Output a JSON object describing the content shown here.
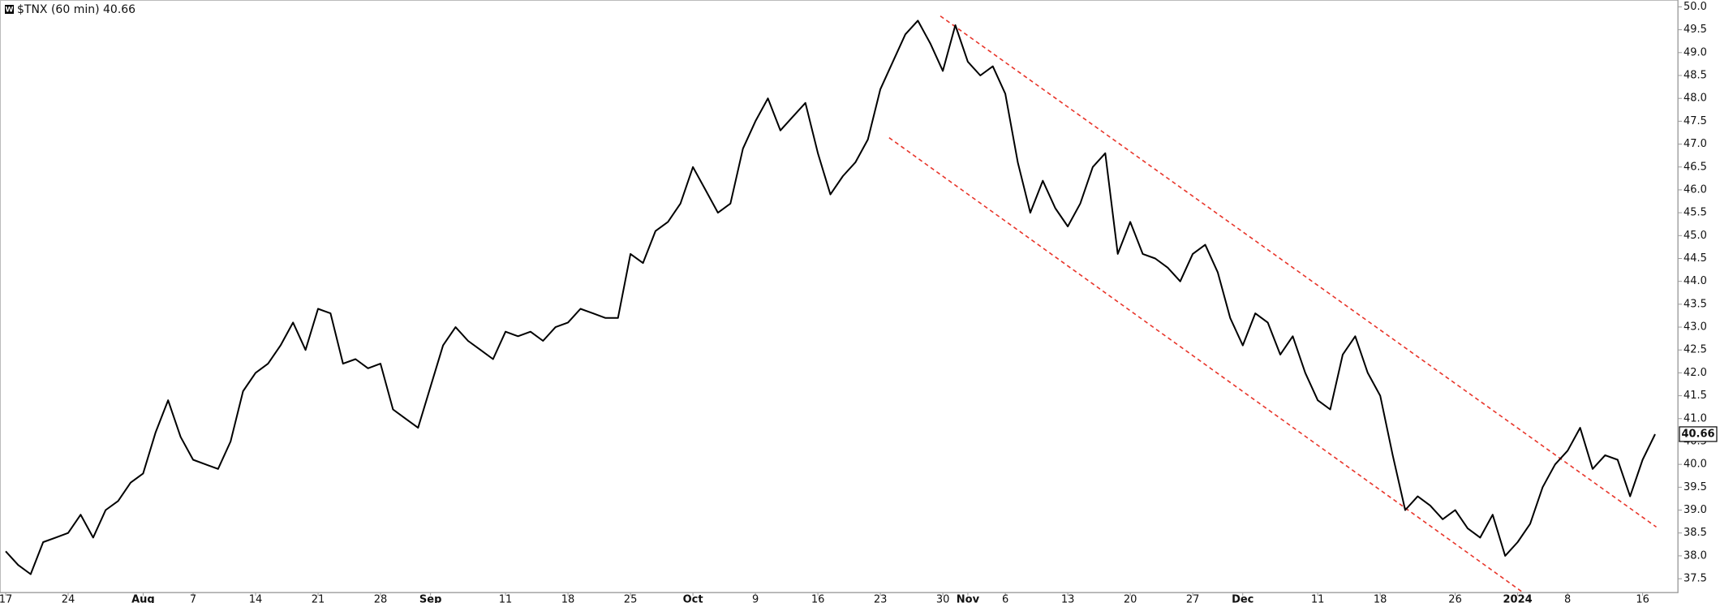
{
  "chart_data": {
    "type": "line",
    "title": "$TNX (60 min) 40.66",
    "categories": [
      "17",
      null,
      null,
      null,
      null,
      "24",
      null,
      null,
      null,
      null,
      null,
      "Aug",
      null,
      null,
      null,
      "7",
      null,
      null,
      null,
      null,
      "14",
      null,
      null,
      null,
      null,
      "21",
      null,
      null,
      null,
      null,
      "28",
      null,
      null,
      null,
      "Sep",
      null,
      null,
      null,
      null,
      null,
      "11",
      null,
      null,
      null,
      null,
      "18",
      null,
      null,
      null,
      null,
      "25",
      null,
      null,
      null,
      null,
      "Oct",
      null,
      null,
      null,
      null,
      "9",
      null,
      null,
      null,
      null,
      "16",
      null,
      null,
      null,
      null,
      "23",
      null,
      null,
      null,
      null,
      "30",
      null,
      "Nov",
      null,
      null,
      "6",
      null,
      null,
      null,
      null,
      "13",
      null,
      null,
      null,
      null,
      "20",
      null,
      null,
      null,
      null,
      "27",
      null,
      null,
      null,
      "Dec",
      null,
      null,
      null,
      null,
      null,
      "11",
      null,
      null,
      null,
      null,
      "18",
      null,
      null,
      null,
      null,
      null,
      "26",
      null,
      null,
      null,
      null,
      "2024",
      null,
      null,
      null,
      "8",
      null,
      null,
      null,
      null,
      null,
      "16",
      null
    ],
    "series": [
      {
        "color": "#000000",
        "values": [
          38.1,
          37.8,
          37.6,
          38.3,
          38.4,
          38.5,
          38.9,
          38.4,
          39.0,
          39.2,
          39.6,
          39.8,
          40.7,
          41.4,
          40.6,
          40.1,
          40.0,
          39.9,
          40.5,
          41.6,
          42.0,
          42.2,
          42.6,
          43.1,
          42.5,
          43.4,
          43.3,
          42.2,
          42.3,
          42.1,
          42.2,
          41.2,
          41.0,
          40.8,
          41.7,
          42.6,
          43.0,
          42.7,
          42.5,
          42.3,
          42.9,
          42.8,
          42.9,
          42.7,
          43.0,
          43.1,
          43.4,
          43.3,
          43.2,
          43.2,
          44.6,
          44.4,
          45.1,
          45.3,
          45.7,
          46.5,
          46.0,
          45.5,
          45.7,
          46.9,
          47.5,
          48.0,
          47.3,
          47.6,
          47.9,
          46.8,
          45.9,
          46.3,
          46.6,
          47.1,
          48.2,
          48.8,
          49.4,
          49.7,
          49.2,
          48.6,
          49.6,
          48.8,
          48.5,
          48.7,
          48.1,
          46.6,
          45.5,
          46.2,
          45.6,
          45.2,
          45.7,
          46.5,
          46.8,
          44.6,
          45.3,
          44.6,
          44.5,
          44.3,
          44.0,
          44.6,
          44.8,
          44.2,
          43.2,
          42.6,
          43.3,
          43.1,
          42.4,
          42.8,
          42.0,
          41.4,
          41.2,
          42.4,
          42.8,
          42.0,
          41.5,
          40.2,
          39.0,
          39.3,
          39.1,
          38.8,
          39.0,
          38.6,
          38.4,
          38.9,
          38.0,
          38.3,
          38.7,
          39.5,
          40.0,
          40.3,
          40.8,
          39.9,
          40.2,
          40.1,
          39.3,
          40.1,
          40.66
        ]
      }
    ],
    "trendlines": [
      {
        "color": "#e8352a",
        "start": [
          74.8,
          49.8
        ],
        "end": [
          132.1,
          38.63
        ]
      },
      {
        "color": "#e8352a",
        "start": [
          70.7,
          47.14
        ],
        "end": [
          122.7,
          36.95
        ]
      }
    ],
    "ylim": [
      37.2,
      50.15
    ],
    "yticks": [
      37.5,
      {
        "value": 38,
        "label": "38.0"
      },
      38.5,
      {
        "value": 39,
        "label": "39.0"
      },
      39.5,
      {
        "value": 40,
        "label": "40.0"
      },
      40.5,
      {
        "value": 41,
        "label": "41.0"
      },
      41.5,
      {
        "value": 42,
        "label": "42.0"
      },
      42.5,
      {
        "value": 43,
        "label": "43.0"
      },
      43.5,
      {
        "value": 44,
        "label": "44.0"
      },
      44.5,
      {
        "value": 45,
        "label": "45.0"
      },
      45.5,
      {
        "value": 46,
        "label": "46.0"
      },
      46.5,
      {
        "value": 47,
        "label": "47.0"
      },
      47.5,
      {
        "value": 48,
        "label": "48.0"
      },
      48.5,
      {
        "value": 49,
        "label": "49.0"
      },
      49.5,
      {
        "value": 50,
        "label": "50.0"
      }
    ]
  }
}
